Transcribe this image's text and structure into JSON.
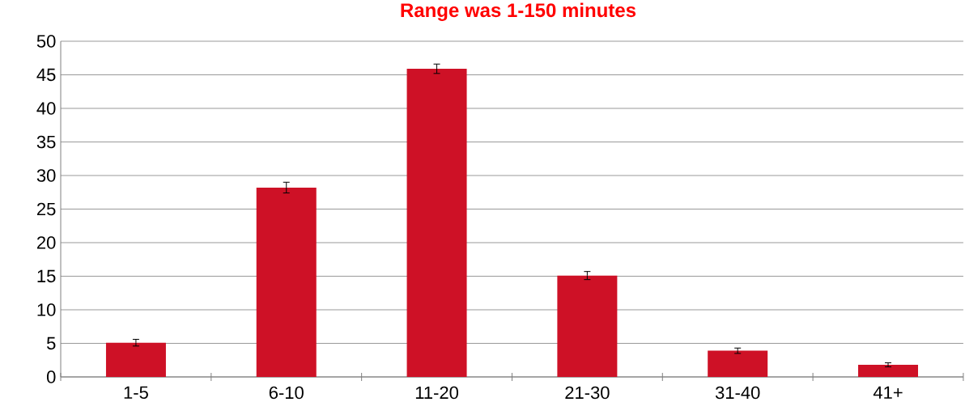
{
  "chart_data": {
    "type": "bar",
    "title": "Range was 1-150 minutes",
    "categories": [
      "1-5",
      "6-10",
      "11-20",
      "21-30",
      "31-40",
      "41+"
    ],
    "values": [
      5.1,
      28.2,
      45.9,
      15.1,
      3.9,
      1.8
    ],
    "errors": [
      0.5,
      0.8,
      0.7,
      0.6,
      0.4,
      0.3
    ],
    "color": "#ce1126",
    "ylim": [
      0,
      50
    ],
    "yticks": [
      0,
      5,
      10,
      15,
      20,
      25,
      30,
      35,
      40,
      45,
      50
    ],
    "grid": "y"
  }
}
